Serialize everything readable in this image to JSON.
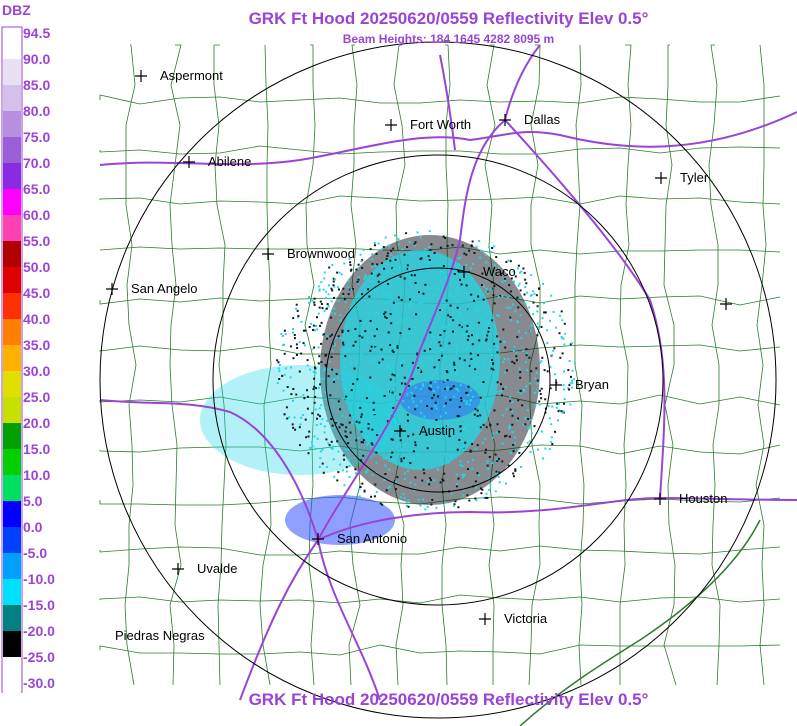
{
  "title": "GRK Ft Hood 20250620/0559 Reflectivity Elev 0.5°",
  "subtitle": "Beam Heights: 184 1645 4282 8095 m",
  "footer_title": "GRK Ft Hood 20250620/0559 Reflectivity Elev 0.5°",
  "legend": {
    "unit": "DBZ",
    "ticks": [
      "94.5",
      "90.0",
      "85.0",
      "80.0",
      "75.0",
      "70.0",
      "65.0",
      "60.0",
      "55.0",
      "50.0",
      "45.0",
      "40.0",
      "35.0",
      "30.0",
      "25.0",
      "20.0",
      "15.0",
      "10.0",
      "5.0",
      "0.0",
      "-5.0",
      "-10.0",
      "-15.0",
      "-20.0",
      "-25.0",
      "-30.0"
    ],
    "colors": [
      "#ffffff",
      "#e9e0f3",
      "#d4c0ea",
      "#b78ee0",
      "#9a5fd6",
      "#8a2be2",
      "#ff00ff",
      "#ff40b0",
      "#b00000",
      "#e00000",
      "#ff3000",
      "#ff8000",
      "#ffb000",
      "#e0e000",
      "#c8e000",
      "#00a000",
      "#00d000",
      "#00e060",
      "#0000ff",
      "#0040ff",
      "#00a0ff",
      "#00e0ff",
      "#008080",
      "#000000",
      "#ffffff",
      "#ffffff"
    ]
  },
  "cities": [
    {
      "name": "Aspermont"
    },
    {
      "name": "Fort Worth"
    },
    {
      "name": "Dallas"
    },
    {
      "name": "Abilene"
    },
    {
      "name": "Tyler"
    },
    {
      "name": "Brownwood"
    },
    {
      "name": "Waco"
    },
    {
      "name": "San Angelo"
    },
    {
      "name": "Bryan"
    },
    {
      "name": "Austin"
    },
    {
      "name": "Houston"
    },
    {
      "name": "San Antonio"
    },
    {
      "name": "Uvalde"
    },
    {
      "name": "Victoria"
    },
    {
      "name": "Piedras Negras"
    }
  ],
  "colors": {
    "title": "#9a44d6",
    "highways": "#9a44d6",
    "county_lines": "#2a7d2a",
    "range_rings": "#000000",
    "echo_light": "#20d8e8",
    "echo_dark": "#101820",
    "echo_blue": "#3050ff"
  }
}
